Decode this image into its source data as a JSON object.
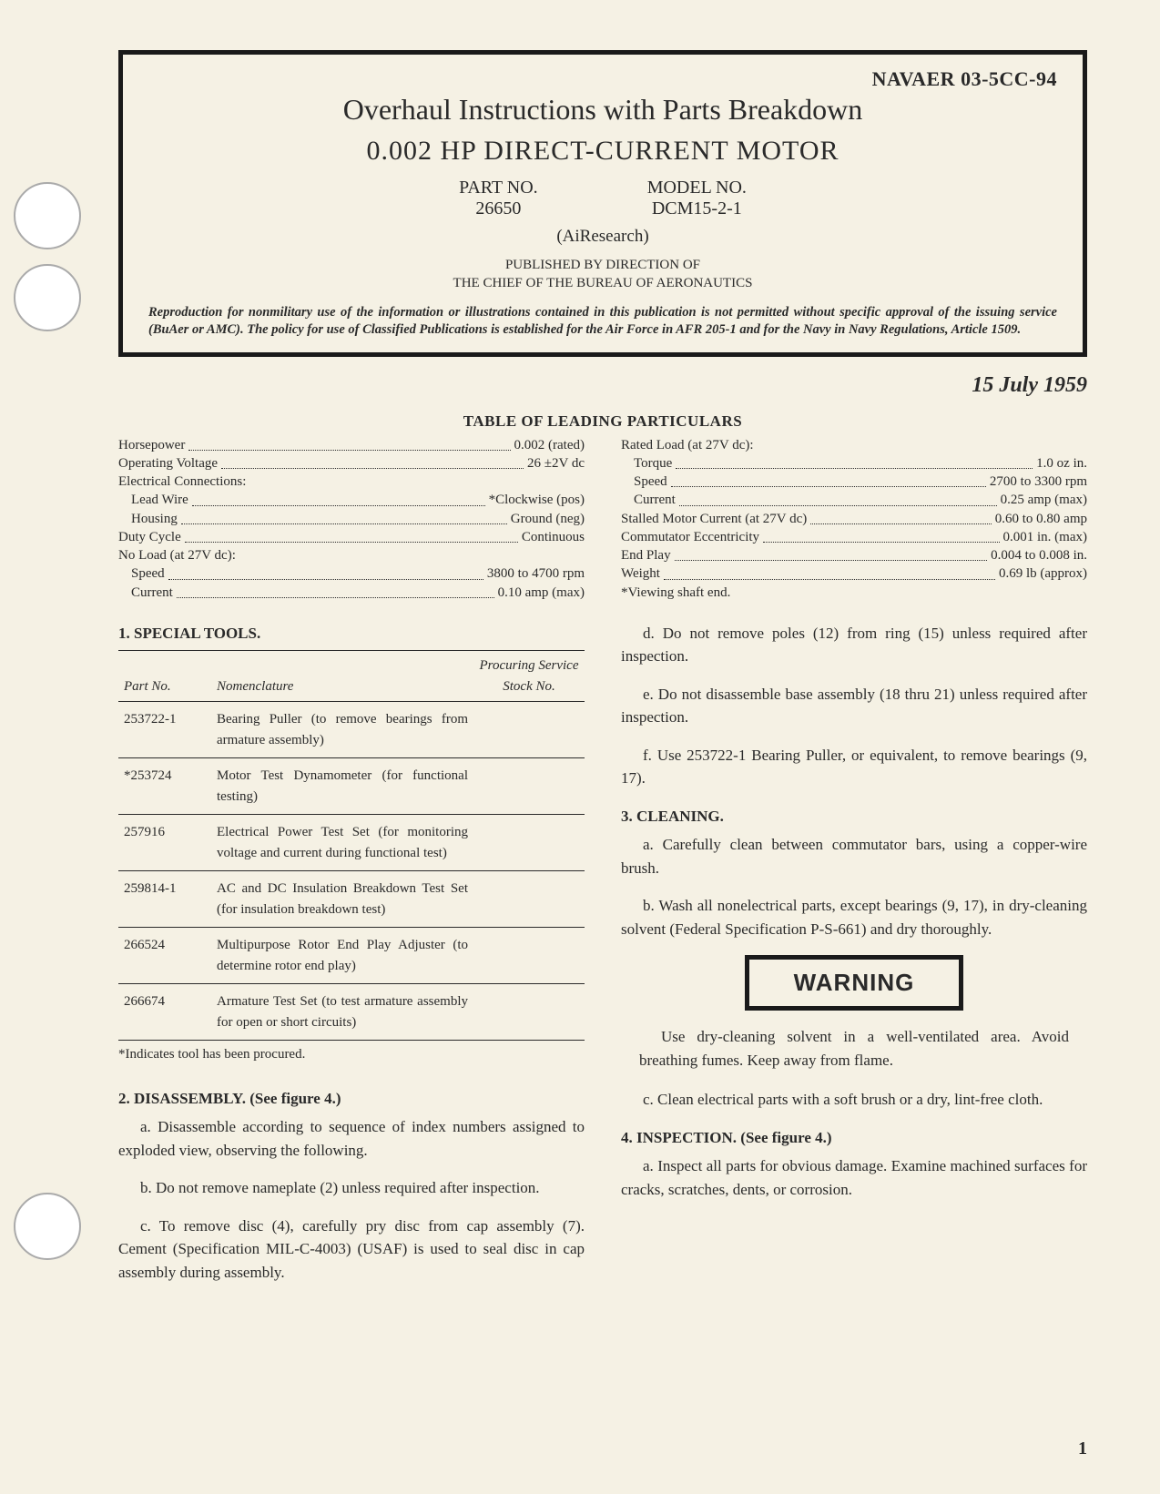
{
  "header": {
    "doc_code": "NAVAER 03-5CC-94",
    "title_line1": "Overhaul Instructions with Parts Breakdown",
    "title_line2": "0.002 HP DIRECT-CURRENT MOTOR",
    "part_no_label": "PART NO.",
    "part_no": "26650",
    "model_no_label": "MODEL NO.",
    "model_no": "DCM15-2-1",
    "maker": "(AiResearch)",
    "published_line1": "PUBLISHED BY DIRECTION OF",
    "published_line2": "THE CHIEF OF THE BUREAU OF AERONAUTICS",
    "reproduction": "Reproduction for nonmilitary use of the information or illustrations contained in this publication is not permitted without specific approval of the issuing service (BuAer or AMC). The policy for use of Classified Publications is established for the Air Force in AFR 205-1 and for the Navy in Navy Regulations, Article 1509."
  },
  "date": "15 July 1959",
  "particulars": {
    "title": "TABLE OF LEADING PARTICULARS",
    "left": [
      {
        "k": "Horsepower",
        "v": "0.002 (rated)",
        "indent": 0
      },
      {
        "k": "Operating Voltage",
        "v": "26 ±2V dc",
        "indent": 0
      },
      {
        "k": "Electrical Connections:",
        "v": "",
        "indent": 0
      },
      {
        "k": "Lead Wire",
        "v": "*Clockwise (pos)",
        "indent": 1
      },
      {
        "k": "Housing",
        "v": "Ground (neg)",
        "indent": 1
      },
      {
        "k": "Duty Cycle",
        "v": "Continuous",
        "indent": 0
      },
      {
        "k": "No Load (at 27V dc):",
        "v": "",
        "indent": 0
      },
      {
        "k": "Speed",
        "v": "3800 to 4700 rpm",
        "indent": 1
      },
      {
        "k": "Current",
        "v": "0.10 amp (max)",
        "indent": 1
      }
    ],
    "right": [
      {
        "k": "Rated Load (at 27V dc):",
        "v": "",
        "indent": 0
      },
      {
        "k": "Torque",
        "v": "1.0 oz in.",
        "indent": 1
      },
      {
        "k": "Speed",
        "v": "2700 to 3300 rpm",
        "indent": 1
      },
      {
        "k": "Current",
        "v": "0.25 amp (max)",
        "indent": 1
      },
      {
        "k": "Stalled Motor Current (at 27V dc)",
        "v": "0.60 to 0.80 amp",
        "indent": 0
      },
      {
        "k": "Commutator Eccentricity",
        "v": "0.001 in. (max)",
        "indent": 0
      },
      {
        "k": "End Play",
        "v": "0.004 to 0.008 in.",
        "indent": 0
      },
      {
        "k": "Weight",
        "v": "0.69 lb (approx)",
        "indent": 0
      },
      {
        "k": "*Viewing shaft end.",
        "v": "",
        "indent": 0
      }
    ]
  },
  "tools": {
    "heading": "1. SPECIAL TOOLS.",
    "col_partno": "Part No.",
    "col_nomen": "Nomenclature",
    "col_stock": "Procuring Service Stock No.",
    "rows": [
      {
        "pn": "253722-1",
        "nom": "Bearing Puller (to remove bearings from armature assembly)"
      },
      {
        "pn": "*253724",
        "nom": "Motor Test Dynamometer (for functional testing)"
      },
      {
        "pn": "257916",
        "nom": "Electrical Power Test Set (for monitoring voltage and current during functional test)"
      },
      {
        "pn": "259814-1",
        "nom": "AC and DC Insulation Breakdown Test Set (for insulation breakdown test)"
      },
      {
        "pn": "266524",
        "nom": "Multipurpose Rotor End Play Adjuster (to determine rotor end play)"
      },
      {
        "pn": "266674",
        "nom": "Armature Test Set (to test armature assembly for open or short circuits)"
      }
    ],
    "note": "*Indicates tool has been procured."
  },
  "sections": {
    "disassembly_head": "2. DISASSEMBLY. (See figure 4.)",
    "dis_a": "a. Disassemble according to sequence of index numbers assigned to exploded view, observing the following.",
    "dis_b": "b. Do not remove nameplate (2) unless required after inspection.",
    "dis_c": "c. To remove disc (4), carefully pry disc from cap assembly (7). Cement (Specification MIL-C-4003) (USAF) is used to seal disc in cap assembly during assembly.",
    "dis_d": "d. Do not remove poles (12) from ring (15) unless required after inspection.",
    "dis_e": "e. Do not disassemble base assembly (18 thru 21) unless required after inspection.",
    "dis_f": "f. Use 253722-1 Bearing Puller, or equivalent, to remove bearings (9, 17).",
    "cleaning_head": "3. CLEANING.",
    "clean_a": "a. Carefully clean between commutator bars, using a copper-wire brush.",
    "clean_b": "b. Wash all nonelectrical parts, except bearings (9, 17), in dry-cleaning solvent (Federal Specification P-S-661) and dry thoroughly.",
    "warning_label": "WARNING",
    "warning_text": "Use dry-cleaning solvent in a well-ventilated area. Avoid breathing fumes. Keep away from flame.",
    "clean_c": "c. Clean electrical parts with a soft brush or a dry, lint-free cloth.",
    "inspection_head": "4. INSPECTION. (See figure 4.)",
    "insp_a": "a. Inspect all parts for obvious damage. Examine machined surfaces for cracks, scratches, dents, or corrosion."
  },
  "page_number": "1"
}
